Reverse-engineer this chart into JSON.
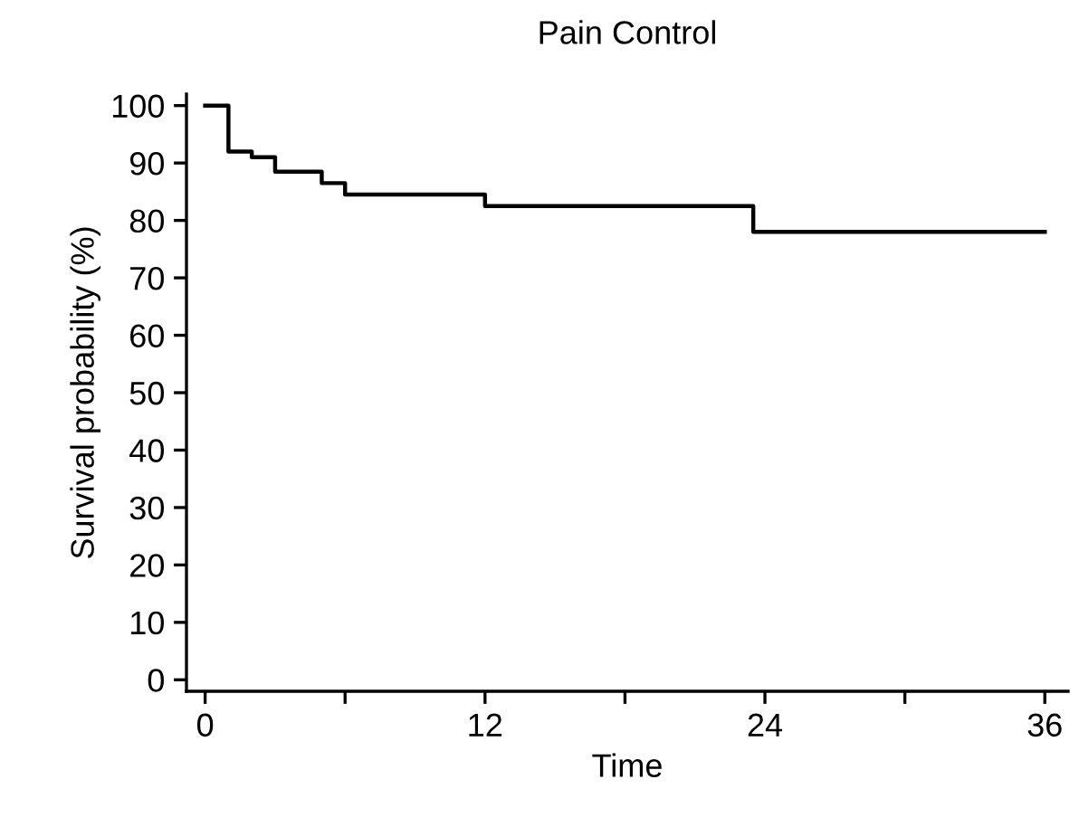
{
  "chart_data": {
    "type": "step",
    "title": "Pain Control",
    "xlabel": "Time",
    "ylabel": "Survival probability (%)",
    "x": [
      0,
      1,
      2,
      3,
      5,
      6,
      12,
      23.5,
      36
    ],
    "series": [
      {
        "color": "#000000",
        "values": [
          100,
          92,
          91,
          88.5,
          86.5,
          84.5,
          82.5,
          78,
          78
        ]
      }
    ],
    "xlim": [
      -0.8,
      37
    ],
    "ylim": [
      -2,
      102
    ],
    "xticks": [
      0,
      {
        "value": 6,
        "label": null
      },
      12,
      {
        "value": 18,
        "label": null
      },
      24,
      {
        "value": 30,
        "label": null
      },
      36
    ],
    "yticks": [
      0,
      10,
      20,
      30,
      40,
      50,
      60,
      70,
      80,
      90,
      100
    ],
    "grid": false,
    "line_style": "solid",
    "marker": "none"
  }
}
